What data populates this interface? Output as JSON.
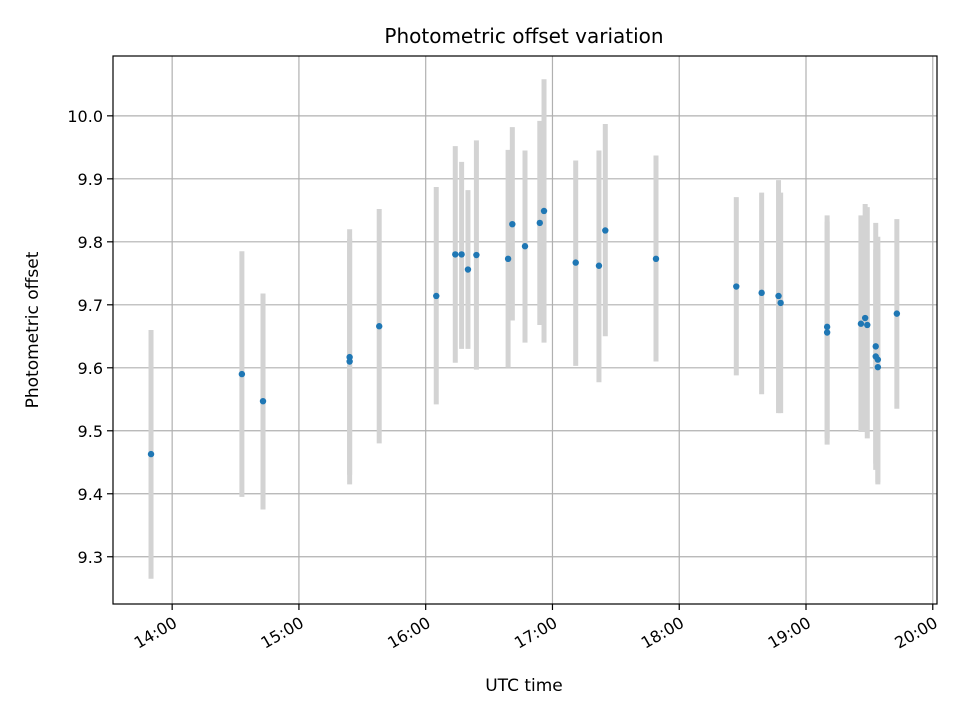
{
  "chart_data": {
    "type": "scatter",
    "title": "Photometric offset variation",
    "xlabel": "UTC time",
    "ylabel": "Photometric offset",
    "xlim": [
      "13:32",
      "20:02"
    ],
    "ylim": [
      9.225,
      10.095
    ],
    "x_ticks": [
      "14:00",
      "15:00",
      "16:00",
      "17:00",
      "18:00",
      "19:00",
      "20:00"
    ],
    "y_ticks": [
      9.3,
      9.4,
      9.5,
      9.6,
      9.7,
      9.8,
      9.9,
      10.0
    ],
    "grid": true,
    "colors": {
      "points": "#1f77b4",
      "errorbars": "#d3d3d3",
      "grid": "#b0b0b0"
    },
    "points": [
      {
        "x": "13:50",
        "y": 9.463,
        "ylow": 9.265,
        "yhigh": 9.66
      },
      {
        "x": "14:33",
        "y": 9.59,
        "ylow": 9.395,
        "yhigh": 9.785
      },
      {
        "x": "14:43",
        "y": 9.547,
        "ylow": 9.375,
        "yhigh": 9.718
      },
      {
        "x": "15:24",
        "y": 9.617,
        "ylow": 9.43,
        "yhigh": 9.805
      },
      {
        "x": "15:24",
        "y": 9.61,
        "ylow": 9.415,
        "yhigh": 9.82
      },
      {
        "x": "15:38",
        "y": 9.666,
        "ylow": 9.48,
        "yhigh": 9.852
      },
      {
        "x": "16:05",
        "y": 9.714,
        "ylow": 9.542,
        "yhigh": 9.887
      },
      {
        "x": "16:14",
        "y": 9.78,
        "ylow": 9.608,
        "yhigh": 9.952
      },
      {
        "x": "16:17",
        "y": 9.78,
        "ylow": 9.63,
        "yhigh": 9.927
      },
      {
        "x": "16:20",
        "y": 9.756,
        "ylow": 9.63,
        "yhigh": 9.882
      },
      {
        "x": "16:24",
        "y": 9.779,
        "ylow": 9.597,
        "yhigh": 9.961
      },
      {
        "x": "16:39",
        "y": 9.773,
        "ylow": 9.6,
        "yhigh": 9.946
      },
      {
        "x": "16:41",
        "y": 9.828,
        "ylow": 9.675,
        "yhigh": 9.982
      },
      {
        "x": "16:47",
        "y": 9.793,
        "ylow": 9.64,
        "yhigh": 9.945
      },
      {
        "x": "16:54",
        "y": 9.83,
        "ylow": 9.668,
        "yhigh": 9.992
      },
      {
        "x": "16:56",
        "y": 9.849,
        "ylow": 9.64,
        "yhigh": 10.058
      },
      {
        "x": "17:11",
        "y": 9.767,
        "ylow": 9.603,
        "yhigh": 9.929
      },
      {
        "x": "17:22",
        "y": 9.762,
        "ylow": 9.577,
        "yhigh": 9.945
      },
      {
        "x": "17:25",
        "y": 9.818,
        "ylow": 9.65,
        "yhigh": 9.987
      },
      {
        "x": "17:49",
        "y": 9.773,
        "ylow": 9.61,
        "yhigh": 9.937
      },
      {
        "x": "18:27",
        "y": 9.729,
        "ylow": 9.588,
        "yhigh": 9.871
      },
      {
        "x": "18:39",
        "y": 9.719,
        "ylow": 9.558,
        "yhigh": 9.878
      },
      {
        "x": "18:47",
        "y": 9.714,
        "ylow": 9.528,
        "yhigh": 9.898
      },
      {
        "x": "18:48",
        "y": 9.703,
        "ylow": 9.528,
        "yhigh": 9.878
      },
      {
        "x": "19:10",
        "y": 9.665,
        "ylow": 9.488,
        "yhigh": 9.842
      },
      {
        "x": "19:10",
        "y": 9.656,
        "ylow": 9.478,
        "yhigh": 9.832
      },
      {
        "x": "19:26",
        "y": 9.67,
        "ylow": 9.498,
        "yhigh": 9.842
      },
      {
        "x": "19:28",
        "y": 9.679,
        "ylow": 9.498,
        "yhigh": 9.86
      },
      {
        "x": "19:29",
        "y": 9.668,
        "ylow": 9.488,
        "yhigh": 9.855
      },
      {
        "x": "19:33",
        "y": 9.634,
        "ylow": 9.438,
        "yhigh": 9.83
      },
      {
        "x": "19:33",
        "y": 9.618,
        "ylow": 9.448,
        "yhigh": 9.788
      },
      {
        "x": "19:34",
        "y": 9.613,
        "ylow": 9.418,
        "yhigh": 9.808
      },
      {
        "x": "19:34",
        "y": 9.601,
        "ylow": 9.415,
        "yhigh": 9.788
      },
      {
        "x": "19:43",
        "y": 9.686,
        "ylow": 9.535,
        "yhigh": 9.836
      }
    ]
  }
}
